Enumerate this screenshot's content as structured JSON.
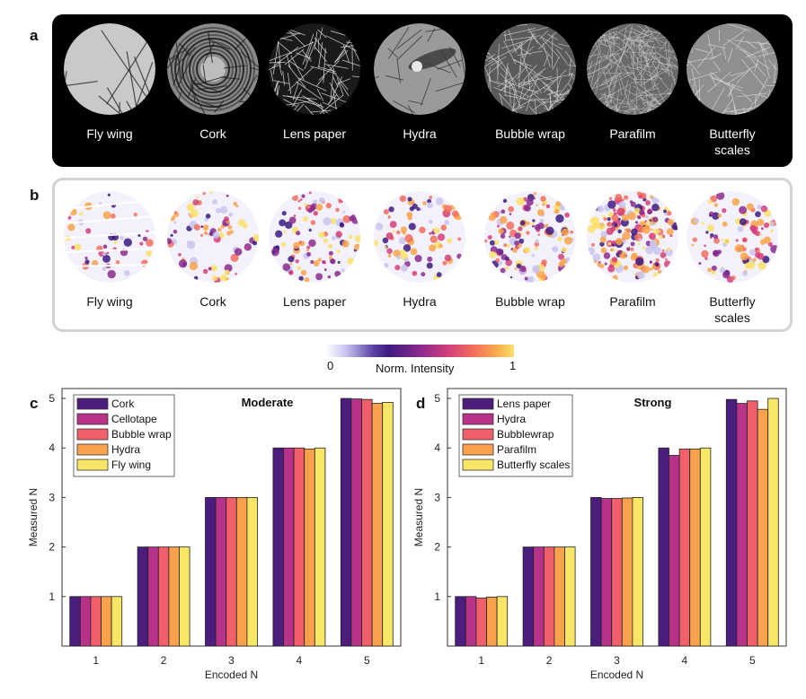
{
  "panels": {
    "a_letter": "a",
    "b_letter": "b",
    "c_letter": "c",
    "d_letter": "d"
  },
  "samples_a": [
    {
      "label": "Fly wing"
    },
    {
      "label": "Cork"
    },
    {
      "label": "Lens paper"
    },
    {
      "label": "Hydra"
    },
    {
      "label": "Bubble wrap"
    },
    {
      "label": "Parafilm"
    },
    {
      "label": "Butterfly scales"
    }
  ],
  "samples_b": [
    {
      "label": "Fly wing"
    },
    {
      "label": "Cork"
    },
    {
      "label": "Lens paper"
    },
    {
      "label": "Hydra"
    },
    {
      "label": "Bubble wrap"
    },
    {
      "label": "Parafilm"
    },
    {
      "label": "Butterfly scales"
    }
  ],
  "colorbar": {
    "min_label": "0",
    "max_label": "1",
    "title": "Norm. Intensity"
  },
  "colors": {
    "series": [
      "#4b1d7d",
      "#b7338a",
      "#f05f6a",
      "#f9a24e",
      "#f8e766"
    ]
  },
  "chart_data": [
    {
      "type": "bar",
      "title": "Moderate",
      "xlabel": "Encoded N",
      "ylabel": "Measured N",
      "categories": [
        "1",
        "2",
        "3",
        "4",
        "5"
      ],
      "ylim": [
        0,
        5.2
      ],
      "yticks": [
        "1",
        "2",
        "3",
        "4",
        "5"
      ],
      "legend_position": "top-left",
      "series": [
        {
          "name": "Cork",
          "values": [
            1.0,
            2.0,
            3.0,
            4.0,
            5.0
          ]
        },
        {
          "name": "Cellotape",
          "values": [
            1.0,
            2.0,
            3.0,
            4.0,
            4.99
          ]
        },
        {
          "name": "Bubble wrap",
          "values": [
            1.0,
            2.0,
            3.0,
            4.0,
            4.98
          ]
        },
        {
          "name": "Hydra",
          "values": [
            1.0,
            2.0,
            3.0,
            3.98,
            4.9
          ]
        },
        {
          "name": "Fly wing",
          "values": [
            1.0,
            2.0,
            3.0,
            4.0,
            4.92
          ]
        }
      ]
    },
    {
      "type": "bar",
      "title": "Strong",
      "xlabel": "Encoded N",
      "ylabel": "Measured N",
      "categories": [
        "1",
        "2",
        "3",
        "4",
        "5"
      ],
      "ylim": [
        0,
        5.2
      ],
      "yticks": [
        "1",
        "2",
        "3",
        "4",
        "5"
      ],
      "legend_position": "top-left",
      "series": [
        {
          "name": "Lens paper",
          "values": [
            1.0,
            2.0,
            3.0,
            4.0,
            4.98
          ]
        },
        {
          "name": "Hydra",
          "values": [
            1.0,
            2.0,
            2.98,
            3.85,
            4.9
          ]
        },
        {
          "name": "Bubblewrap",
          "values": [
            0.97,
            2.0,
            2.98,
            3.98,
            4.95
          ]
        },
        {
          "name": "Parafilm",
          "values": [
            0.99,
            2.0,
            2.99,
            3.98,
            4.78
          ]
        },
        {
          "name": "Butterfly scales",
          "values": [
            1.0,
            2.0,
            3.0,
            4.0,
            5.0
          ]
        }
      ]
    }
  ]
}
